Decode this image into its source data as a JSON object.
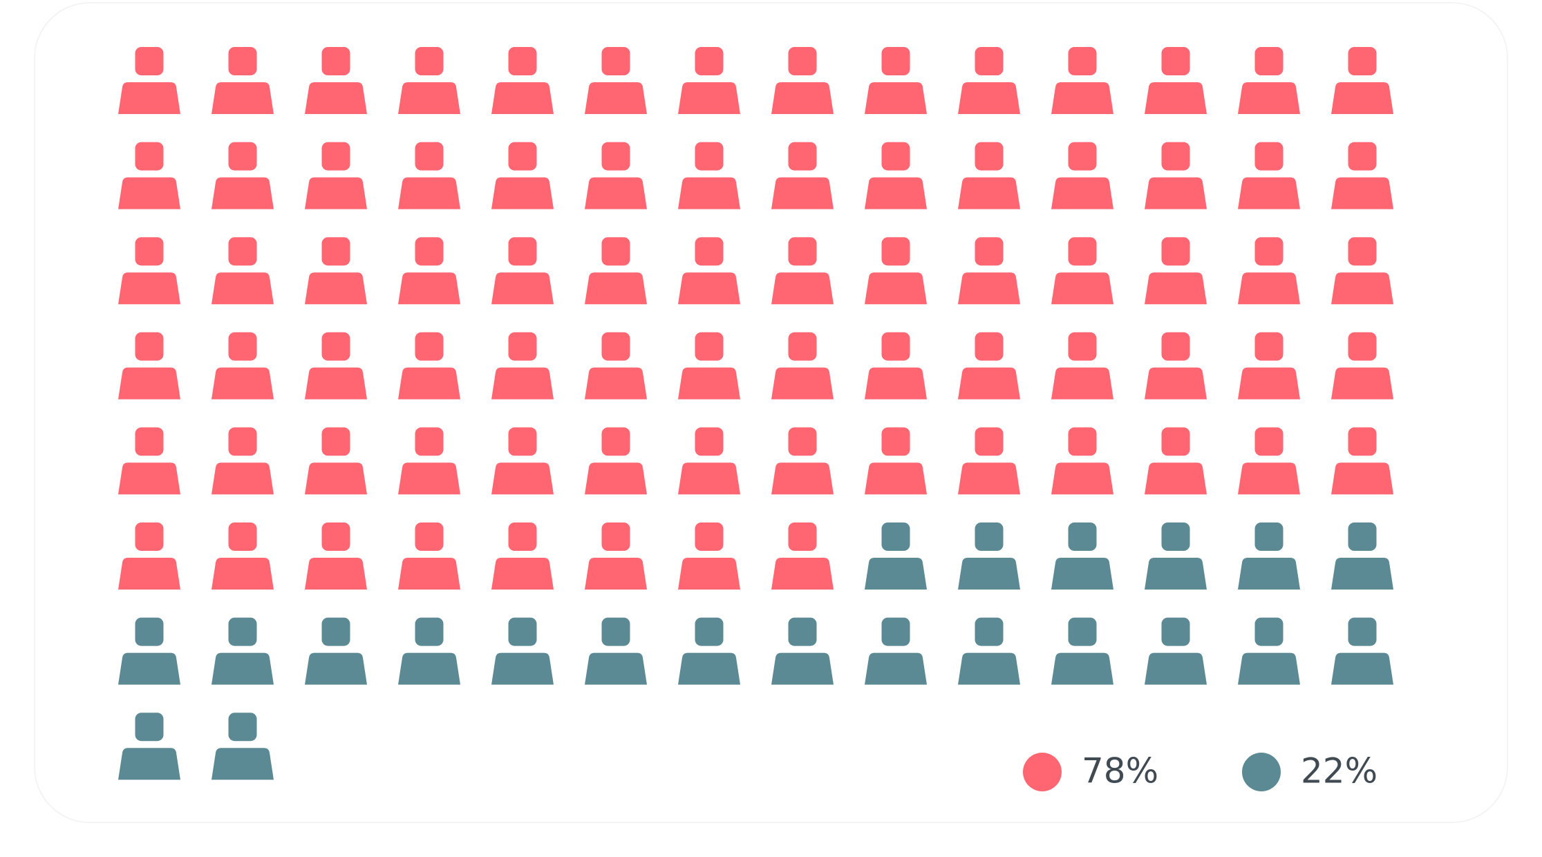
{
  "chart_data": {
    "type": "pictogram",
    "values": [
      78,
      22
    ],
    "value_labels": [
      "78%",
      "22%"
    ],
    "colors": [
      "#ff6671",
      "#5c8a94"
    ]
  }
}
